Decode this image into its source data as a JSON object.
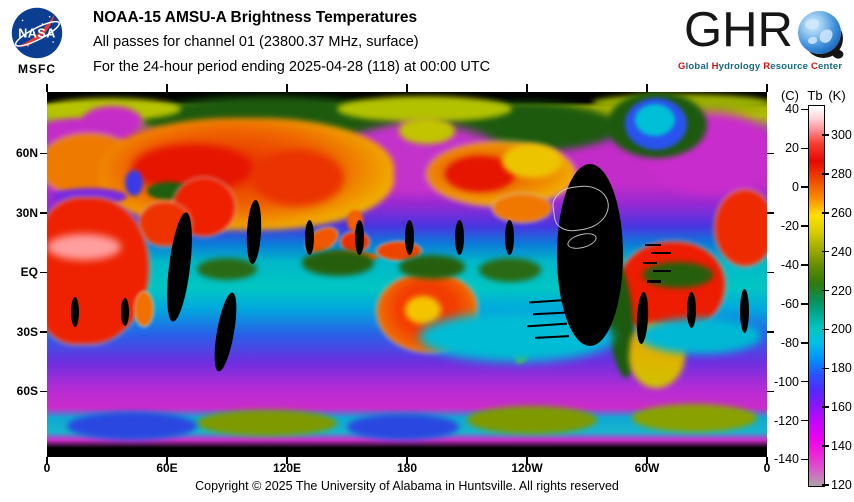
{
  "header": {
    "nasa": {
      "wordmark": "NASA",
      "center_label": "MSFC"
    },
    "title_line1": "NOAA-15 AMSU-A Brightness Temperatures",
    "title_line2": "All passes for channel 01 (23800.37 MHz, surface)",
    "title_line3": "For the 24-hour period ending 2025-04-28 (118) at 00:00 UTC",
    "ghrc": {
      "wordmark_prefix": "GHR",
      "wordmark_globe_letter": "C",
      "tagline_words": [
        {
          "initial": "G",
          "rest": "lobal"
        },
        {
          "initial": "H",
          "rest": "ydrology"
        },
        {
          "initial": "R",
          "rest": "esource"
        },
        {
          "initial": "C",
          "rest": "enter"
        }
      ],
      "initial_color": "#cc1111",
      "tagline_color": "#176a7e"
    }
  },
  "map": {
    "lat_ticks": [
      {
        "label": "60N",
        "lat": 60
      },
      {
        "label": "30N",
        "lat": 30
      },
      {
        "label": "EQ",
        "lat": 0
      },
      {
        "label": "30S",
        "lat": -30
      },
      {
        "label": "60S",
        "lat": -60
      }
    ],
    "lon_ticks": [
      {
        "label": "0",
        "lon": 0
      },
      {
        "label": "60E",
        "lon": 60
      },
      {
        "label": "120E",
        "lon": 120
      },
      {
        "label": "180",
        "lon": 180
      },
      {
        "label": "120W",
        "lon": 240
      },
      {
        "label": "60W",
        "lon": 300
      },
      {
        "label": "0",
        "lon": 360
      }
    ]
  },
  "colorbar": {
    "unit_left": "(C)",
    "unit_center": "Tb",
    "unit_right": "(K)",
    "celsius_ticks": [
      40,
      20,
      0,
      -20,
      -40,
      -60,
      -80,
      -100,
      -120,
      -140
    ],
    "kelvin_ticks": [
      300,
      280,
      260,
      240,
      220,
      200,
      180,
      160,
      140,
      120
    ],
    "scale_top_kelvin": 315.4,
    "scale_bottom_kelvin": 120,
    "gradient_stops": [
      {
        "kelvin": 315,
        "color": "#ffffff"
      },
      {
        "kelvin": 309,
        "color": "#ffd2d8"
      },
      {
        "kelvin": 303,
        "color": "#ff8e96"
      },
      {
        "kelvin": 296,
        "color": "#fa3b30"
      },
      {
        "kelvin": 287,
        "color": "#e60800"
      },
      {
        "kelvin": 277,
        "color": "#ef4c00"
      },
      {
        "kelvin": 268,
        "color": "#fb8d00"
      },
      {
        "kelvin": 259,
        "color": "#ffe000"
      },
      {
        "kelvin": 250,
        "color": "#d2cb00"
      },
      {
        "kelvin": 241,
        "color": "#9aa700"
      },
      {
        "kelvin": 232,
        "color": "#5d8a00"
      },
      {
        "kelvin": 224,
        "color": "#2e7b0e"
      },
      {
        "kelvin": 216,
        "color": "#0b8f55"
      },
      {
        "kelvin": 209,
        "color": "#00a88e"
      },
      {
        "kelvin": 201,
        "color": "#00c6c0"
      },
      {
        "kelvin": 193,
        "color": "#00bfe8"
      },
      {
        "kelvin": 185,
        "color": "#0090ff"
      },
      {
        "kelvin": 177,
        "color": "#2a52ff"
      },
      {
        "kelvin": 169,
        "color": "#5228ff"
      },
      {
        "kelvin": 161,
        "color": "#8c14ff"
      },
      {
        "kelvin": 153,
        "color": "#c505ff"
      },
      {
        "kelvin": 145,
        "color": "#ea00ef"
      },
      {
        "kelvin": 137,
        "color": "#f01fdd"
      },
      {
        "kelvin": 129,
        "color": "#dd55cc"
      },
      {
        "kelvin": 123,
        "color": "#bd8cb4"
      },
      {
        "kelvin": 120,
        "color": "#b09cab"
      }
    ]
  },
  "footer": {
    "copyright": "Copyright © 2025 The University of Alabama in Huntsville.  All rights reserved"
  }
}
